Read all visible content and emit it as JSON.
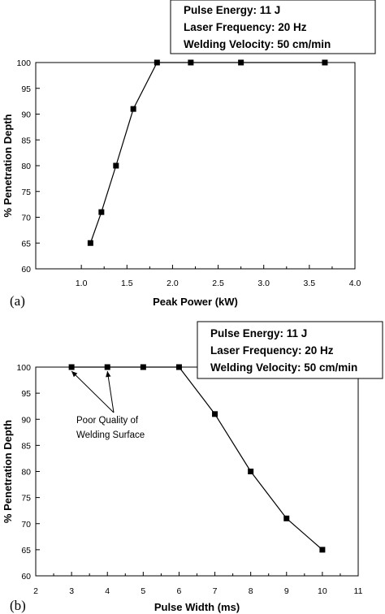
{
  "chart_data": [
    {
      "type": "line",
      "panel_label": "(a)",
      "xlabel": "Peak Power (kW)",
      "ylabel": "% Penetration Depth",
      "xlim": [
        0.5,
        4.0
      ],
      "ylim": [
        60,
        100
      ],
      "xticks": [
        "1.0",
        "1.5",
        "2.0",
        "2.5",
        "3.0",
        "3.5",
        "4.0"
      ],
      "yticks": [
        "60",
        "65",
        "70",
        "75",
        "80",
        "85",
        "90",
        "95",
        "100"
      ],
      "series": [
        {
          "x": [
            1.1,
            1.22,
            1.38,
            1.57,
            1.83,
            2.2,
            2.75,
            3.67
          ],
          "y": [
            65,
            71,
            80,
            91,
            100,
            100,
            100,
            100
          ]
        }
      ],
      "info_box": [
        "Pulse Energy: 11 J",
        "Laser Frequency: 20 Hz",
        "Welding Velocity: 50 cm/min"
      ],
      "grid": false
    },
    {
      "type": "line",
      "panel_label": "(b)",
      "xlabel": "Pulse Width (ms)",
      "ylabel": "% Penetration Depth",
      "xlim": [
        2,
        11
      ],
      "ylim": [
        60,
        100
      ],
      "xticks": [
        "2",
        "3",
        "4",
        "5",
        "6",
        "7",
        "8",
        "9",
        "10",
        "11"
      ],
      "yticks": [
        "60",
        "65",
        "70",
        "75",
        "80",
        "85",
        "90",
        "95",
        "100"
      ],
      "series": [
        {
          "x": [
            3,
            4,
            5,
            6,
            7,
            8,
            9,
            10
          ],
          "y": [
            100,
            100,
            100,
            100,
            91,
            80,
            71,
            65
          ]
        }
      ],
      "info_box": [
        "Pulse Energy: 11 J",
        "Laser Frequency: 20 Hz",
        "Welding Velocity: 50 cm/min"
      ],
      "annotation": {
        "lines": [
          "Poor Quality of",
          "Welding Surface"
        ],
        "targets": [
          {
            "x": 3,
            "y": 100
          },
          {
            "x": 4,
            "y": 100
          }
        ]
      },
      "grid": false
    }
  ]
}
